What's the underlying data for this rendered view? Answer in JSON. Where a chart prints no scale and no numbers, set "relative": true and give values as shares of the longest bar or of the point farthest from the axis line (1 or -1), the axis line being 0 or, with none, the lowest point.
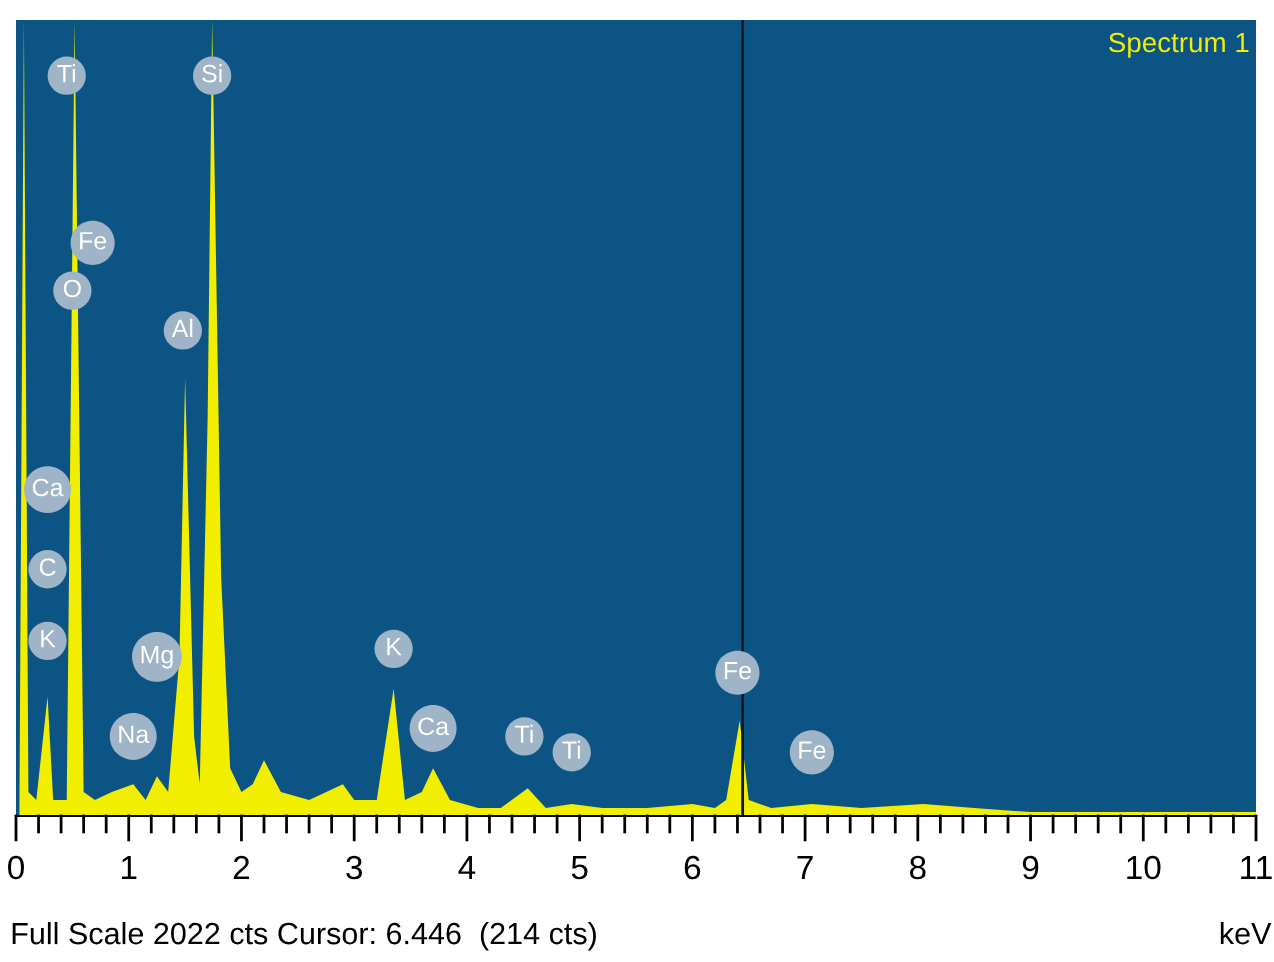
{
  "chart_data": {
    "type": "area",
    "relative": true,
    "xlabel": "keV",
    "xlim": [
      0,
      11
    ],
    "xticks": [
      0,
      {
        "value": 0.2,
        "label": null
      },
      {
        "value": 0.4,
        "label": null
      },
      {
        "value": 0.6,
        "label": null
      },
      {
        "value": 0.8,
        "label": null
      },
      1,
      {
        "value": 1.2,
        "label": null
      },
      {
        "value": 1.4,
        "label": null
      },
      {
        "value": 1.6,
        "label": null
      },
      {
        "value": 1.8,
        "label": null
      },
      2,
      {
        "value": 2.2,
        "label": null
      },
      {
        "value": 2.4,
        "label": null
      },
      {
        "value": 2.6,
        "label": null
      },
      {
        "value": 2.8,
        "label": null
      },
      3,
      {
        "value": 3.2,
        "label": null
      },
      {
        "value": 3.4,
        "label": null
      },
      {
        "value": 3.6,
        "label": null
      },
      {
        "value": 3.8,
        "label": null
      },
      4,
      {
        "value": 4.2,
        "label": null
      },
      {
        "value": 4.4,
        "label": null
      },
      {
        "value": 4.6,
        "label": null
      },
      {
        "value": 4.8,
        "label": null
      },
      5,
      {
        "value": 5.2,
        "label": null
      },
      {
        "value": 5.4,
        "label": null
      },
      {
        "value": 5.6,
        "label": null
      },
      {
        "value": 5.8,
        "label": null
      },
      6,
      {
        "value": 6.2,
        "label": null
      },
      {
        "value": 6.4,
        "label": null
      },
      {
        "value": 6.6,
        "label": null
      },
      {
        "value": 6.8,
        "label": null
      },
      7,
      {
        "value": 7.2,
        "label": null
      },
      {
        "value": 7.4,
        "label": null
      },
      {
        "value": 7.6,
        "label": null
      },
      {
        "value": 7.8,
        "label": null
      },
      8,
      {
        "value": 8.2,
        "label": null
      },
      {
        "value": 8.4,
        "label": null
      },
      {
        "value": 8.6,
        "label": null
      },
      {
        "value": 8.8,
        "label": null
      },
      9,
      {
        "value": 9.2,
        "label": null
      },
      {
        "value": 9.4,
        "label": null
      },
      {
        "value": 9.6,
        "label": null
      },
      {
        "value": 9.8,
        "label": null
      },
      10,
      {
        "value": 10.2,
        "label": null
      },
      {
        "value": 10.4,
        "label": null
      },
      {
        "value": 10.6,
        "label": null
      },
      {
        "value": 10.8,
        "label": null
      },
      11
    ],
    "grid": false,
    "tick_labels": "x",
    "series": [
      {
        "name": "Spectrum 1",
        "color": "#f2ee00",
        "x": [
          0.03,
          0.07,
          0.11,
          0.18,
          0.28,
          0.33,
          0.45,
          0.52,
          0.6,
          0.7,
          0.85,
          1.04,
          1.15,
          1.25,
          1.35,
          1.45,
          1.5,
          1.58,
          1.63,
          1.7,
          1.74,
          1.82,
          1.9,
          2.0,
          2.1,
          2.2,
          2.35,
          2.6,
          2.9,
          3.0,
          3.2,
          3.35,
          3.45,
          3.6,
          3.7,
          3.85,
          4.1,
          4.3,
          4.54,
          4.7,
          4.93,
          5.2,
          5.6,
          6.0,
          6.2,
          6.3,
          6.42,
          6.5,
          6.7,
          7.06,
          7.5,
          8.05,
          8.5,
          9.0,
          10.0,
          11.0
        ],
        "values": [
          0,
          1,
          0.03,
          0.02,
          0.15,
          0.02,
          0.02,
          1,
          0.03,
          0.02,
          0.03,
          0.04,
          0.02,
          0.05,
          0.03,
          0.2,
          0.55,
          0.1,
          0.04,
          0.5,
          1,
          0.3,
          0.06,
          0.03,
          0.04,
          0.07,
          0.03,
          0.02,
          0.04,
          0.02,
          0.02,
          0.16,
          0.02,
          0.03,
          0.06,
          0.02,
          0.01,
          0.01,
          0.035,
          0.01,
          0.015,
          0.01,
          0.01,
          0.015,
          0.01,
          0.02,
          0.12,
          0.02,
          0.01,
          0.015,
          0.01,
          0.015,
          0.01,
          0.005,
          0.005,
          0.005
        ]
      }
    ],
    "ref_lines": [
      {
        "axis": "x",
        "value": 6.446,
        "color": "#101820"
      }
    ],
    "annotations": [
      "Full Scale 2022 cts Cursor: 6.446  (214 cts)",
      {
        "text": "Ti",
        "x": 0.45,
        "y": 0.93
      },
      {
        "text": "Fe",
        "x": 0.68,
        "y": 0.72
      },
      {
        "text": "O",
        "x": 0.5,
        "y": 0.66
      },
      {
        "text": "Si",
        "x": 1.74,
        "y": 0.93
      },
      {
        "text": "Al",
        "x": 1.48,
        "y": 0.61
      },
      {
        "text": "Ca",
        "x": 0.28,
        "y": 0.41
      },
      {
        "text": "C",
        "x": 0.28,
        "y": 0.31
      },
      {
        "text": "K",
        "x": 0.28,
        "y": 0.22
      },
      {
        "text": "Na",
        "x": 1.04,
        "y": 0.1
      },
      {
        "text": "Mg",
        "x": 1.25,
        "y": 0.2
      },
      {
        "text": "K",
        "x": 3.35,
        "y": 0.21
      },
      {
        "text": "Ca",
        "x": 3.7,
        "y": 0.11
      },
      {
        "text": "Ti",
        "x": 4.51,
        "y": 0.1
      },
      {
        "text": "Ti",
        "x": 4.93,
        "y": 0.08
      },
      {
        "text": "Fe",
        "x": 6.4,
        "y": 0.18
      },
      {
        "text": "Fe",
        "x": 7.06,
        "y": 0.08
      }
    ]
  }
}
